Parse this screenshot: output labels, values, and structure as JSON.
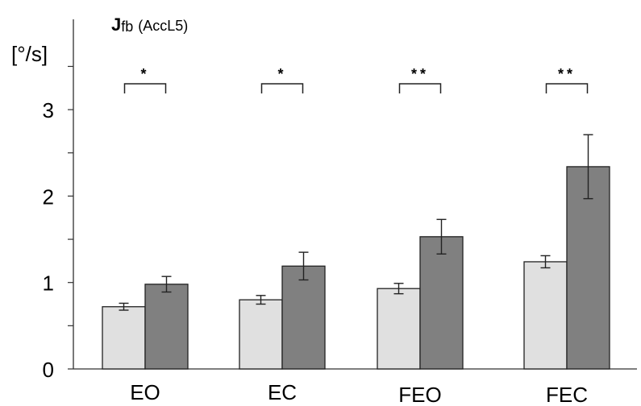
{
  "chart_data": {
    "type": "bar",
    "title_main": "J",
    "title_sub": "fb",
    "title_note": "(AccL5)",
    "ylabel": "[°/s]",
    "xlabel": "",
    "ylim": [
      0,
      4
    ],
    "yticks": [
      0,
      1,
      2,
      3
    ],
    "grid": false,
    "categories": [
      "EO",
      "EC",
      "FEO",
      "FEC"
    ],
    "series": [
      {
        "color": "#e0e0e0",
        "values": [
          0.72,
          0.8,
          0.93,
          1.24
        ],
        "errors": [
          0.04,
          0.05,
          0.06,
          0.07
        ]
      },
      {
        "color": "#808080",
        "values": [
          0.98,
          1.19,
          1.53,
          2.34
        ],
        "errors": [
          0.09,
          0.16,
          0.2,
          0.37
        ]
      }
    ],
    "significance": [
      "*",
      "*",
      "**",
      "**"
    ]
  }
}
